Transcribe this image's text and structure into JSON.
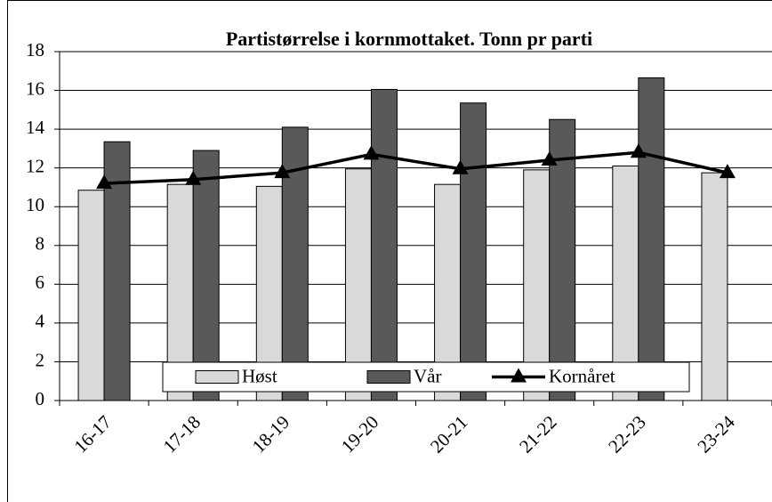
{
  "chart_data": {
    "type": "bar",
    "title": "Partistørrelse i kornmottaket. Tonn pr parti",
    "categories": [
      "16-17",
      "17-18",
      "18-19",
      "19-20",
      "20-21",
      "21-22",
      "22-23",
      "23-24"
    ],
    "series": [
      {
        "name": "Høst",
        "type": "bar",
        "color": "#d9d9d9",
        "values": [
          10.85,
          11.15,
          11.05,
          11.95,
          11.15,
          11.9,
          12.1,
          11.75
        ]
      },
      {
        "name": "Vår",
        "type": "bar",
        "color": "#595959",
        "values": [
          13.35,
          12.9,
          14.1,
          16.05,
          15.35,
          14.5,
          16.65,
          null
        ]
      },
      {
        "name": "Kornåret",
        "type": "line",
        "color": "#000000",
        "values": [
          11.2,
          11.4,
          11.75,
          12.7,
          11.95,
          12.4,
          12.8,
          11.75
        ]
      }
    ],
    "ylim": [
      0,
      18
    ],
    "yticks": [
      0,
      2,
      4,
      6,
      8,
      10,
      12,
      14,
      16,
      18
    ],
    "grid": true,
    "legend": "bottom"
  }
}
